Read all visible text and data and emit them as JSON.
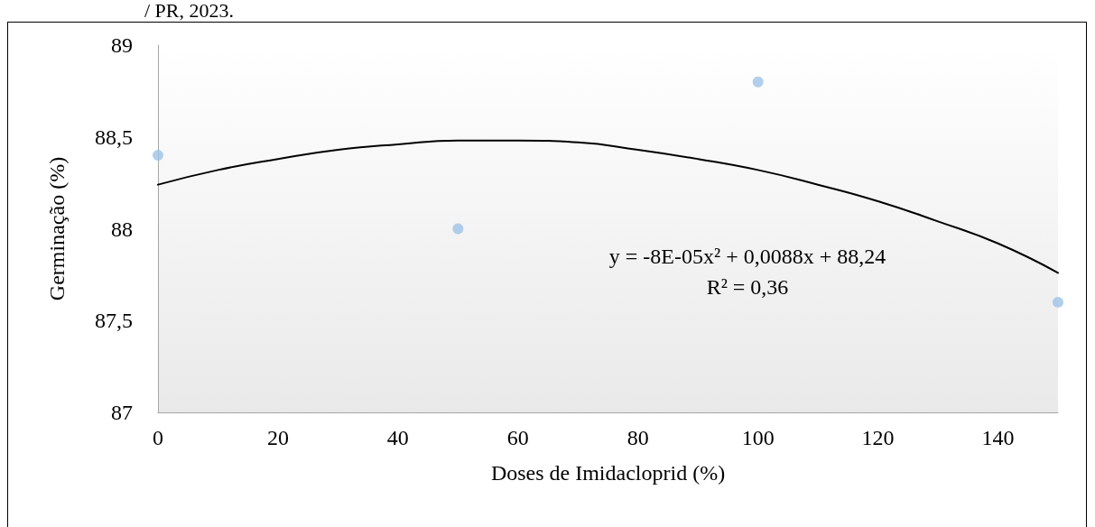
{
  "chart_data": {
    "type": "scatter",
    "xlabel": "Doses de Imidacloprid (%)",
    "ylabel": "Germinação (%)",
    "annotations": [
      "/ PR, 2023.",
      "y = -8E-05x² + 0,0088x + 88,24",
      "R² = 0,36"
    ],
    "series": [
      {
        "type": "scatter",
        "color": "#9dc3e6",
        "x": [
          0,
          50,
          100,
          150
        ],
        "values": [
          88.4,
          88.0,
          88.8,
          87.6
        ],
        "marker": "circle"
      },
      {
        "type": "line",
        "color": "#000000",
        "line_style": "solid",
        "marker": "none",
        "x": [
          0,
          10,
          20,
          30,
          40,
          50,
          60,
          70,
          80,
          90,
          100,
          110,
          120,
          130,
          140,
          150
        ],
        "values": [
          88.24,
          88.32,
          88.38,
          88.43,
          88.46,
          88.48,
          88.48,
          88.47,
          88.43,
          88.38,
          88.32,
          88.24,
          88.15,
          88.04,
          87.92,
          87.76
        ]
      }
    ],
    "xlim": [
      0,
      150
    ],
    "xticks": [
      0,
      20,
      40,
      60,
      80,
      100,
      120,
      140
    ],
    "ylim": [
      87,
      89
    ],
    "yticks": [
      87,
      {
        "value": 87.5,
        "label": "87,5"
      },
      88,
      {
        "value": 88.5,
        "label": "88,5"
      },
      89
    ],
    "grid": false
  }
}
